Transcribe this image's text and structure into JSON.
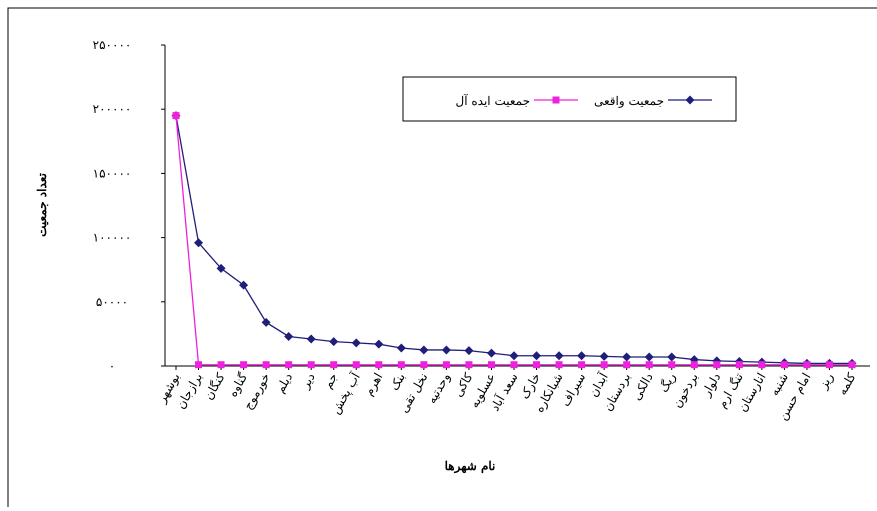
{
  "chart_data": {
    "type": "line",
    "categories": [
      "بوشهر",
      "برازجان",
      "کنگان",
      "گناوه",
      "خورموج",
      "دیلم",
      "دیر",
      "جم",
      "آب پخش",
      "اهرم",
      "بنک",
      "نخل تقی",
      "وحدتیه",
      "کاکی",
      "عسلویه",
      "سعد آباد",
      "خارک",
      "شبانکاره",
      "سیراف",
      "آبدان",
      "بردستان",
      "دالکی",
      "ریگ",
      "بردخون",
      "دلوار",
      "تنگ ارم",
      "انارستان",
      "شنبه",
      "امام حسن",
      "ریز",
      "کلمه"
    ],
    "series": [
      {
        "name": "جمعیت واقعی",
        "color": "#1f1f7a",
        "marker": "diamond",
        "values": [
          195000,
          96000,
          76000,
          63000,
          34000,
          23000,
          21000,
          19000,
          18000,
          17000,
          14000,
          12500,
          12500,
          12000,
          10000,
          8000,
          8000,
          8000,
          8000,
          7500,
          7000,
          7000,
          7000,
          5000,
          4000,
          3500,
          3000,
          2500,
          2000,
          2000,
          2000
        ]
      },
      {
        "name": "جمعیت ایده آل",
        "color": "#ee22dd",
        "marker": "square",
        "values": [
          195000,
          1000,
          1000,
          1000,
          1000,
          1000,
          1000,
          1000,
          1000,
          1000,
          1000,
          1000,
          1000,
          1000,
          1000,
          1000,
          1000,
          1000,
          1000,
          1000,
          1000,
          1000,
          1000,
          1000,
          1000,
          1000,
          1000,
          1000,
          1000,
          1000,
          1000
        ]
      }
    ],
    "ylim": [
      0,
      250000
    ],
    "yticks": [
      {
        "value": 0,
        "label": "۰"
      },
      {
        "value": 50000,
        "label": "۵۰۰۰۰"
      },
      {
        "value": 100000,
        "label": "۱۰۰۰۰۰"
      },
      {
        "value": 150000,
        "label": "۱۵۰۰۰۰"
      },
      {
        "value": 200000,
        "label": "۲۰۰۰۰۰"
      },
      {
        "value": 250000,
        "label": "۲۵۰۰۰۰"
      }
    ],
    "xlabel": "نام شهرها",
    "ylabel": "تعداد جمعیت"
  }
}
